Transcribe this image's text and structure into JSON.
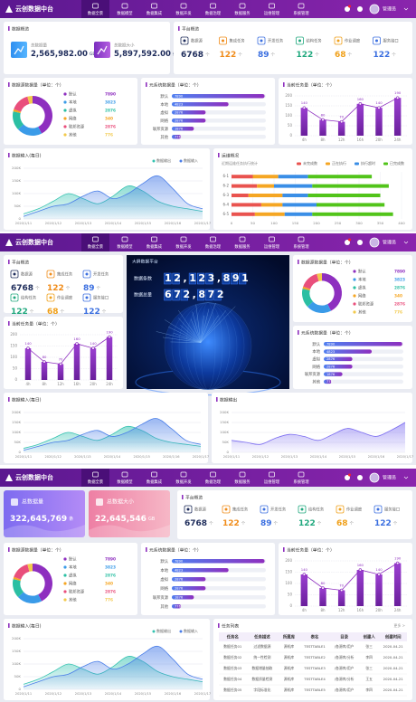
{
  "header": {
    "logo": "云创数据中台",
    "nav": [
      "数据全景",
      "数据模型",
      "数据集成",
      "数据开发",
      "数据治理",
      "数据服务",
      "运维管理",
      "系统管理"
    ],
    "user": "管理员"
  },
  "overview": {
    "title": "数据概览",
    "items": [
      {
        "label": "总数据量",
        "value": "2,565,982.00",
        "unit": "GB"
      },
      {
        "label": "总数据大小",
        "value": "5,897,592.00",
        "unit": "条"
      }
    ]
  },
  "platform": {
    "title": "平台概览",
    "items": [
      {
        "label": "数据源",
        "value": "6768",
        "unit": "个",
        "color": "#1d2b5a"
      },
      {
        "label": "集成任务",
        "value": "122",
        "unit": "个",
        "color": "#f08c1a"
      },
      {
        "label": "开发任务",
        "value": "89",
        "unit": "个",
        "color": "#3b6fe0"
      },
      {
        "label": "结构任务",
        "value": "122",
        "unit": "个",
        "color": "#20a87e"
      },
      {
        "label": "作业调度",
        "value": "68",
        "unit": "个",
        "color": "#f0a01a"
      },
      {
        "label": "服务接口",
        "value": "122",
        "unit": "个",
        "color": "#3b6fe0"
      }
    ]
  },
  "source_chart": {
    "type": "pie",
    "title": "数据源数据量（单位：个）",
    "categories": [
      "默认",
      "本地",
      "虚拟",
      "网络",
      "联邦资源",
      "其他"
    ],
    "values": [
      7890,
      3823,
      2876,
      340,
      2876,
      776
    ],
    "colors": [
      "#8e2fbf",
      "#3a9be8",
      "#2bbfa3",
      "#f5a623",
      "#e94f7c",
      "#f2c94c"
    ]
  },
  "meta_chart": {
    "type": "hbar",
    "title": "元系统数据量（单位：个）",
    "categories": [
      "默认",
      "本地",
      "虚拟",
      "网络",
      "联邦资源",
      "其他"
    ],
    "values": [
      7890,
      4823,
      2876,
      2876,
      1876,
      776
    ],
    "xlim": [
      0,
      8000
    ],
    "color": "#5b6cf0"
  },
  "task_chart": {
    "type": "bar",
    "title": "当前任务量（单位：个）",
    "categories": [
      "4h",
      "8h",
      "12h",
      "16h",
      "20h",
      "24h"
    ],
    "values": [
      140,
      80,
      70,
      160,
      140,
      190
    ],
    "ylim": [
      0,
      200
    ],
    "yticks": [
      0,
      50,
      100,
      150,
      200
    ],
    "color": "#8e2fbf"
  },
  "input_chart": {
    "type": "area",
    "title": "数据输入(每日)",
    "x": [
      "2020/1/11",
      null,
      "2020/1/12",
      null,
      "2020/1/13",
      null,
      "2020/1/14",
      null,
      "2020/1/15",
      null,
      "2020/1/16",
      null,
      "2020/1/17"
    ],
    "series": [
      {
        "name": "数据输出",
        "color": "#33c2b0",
        "values": [
          20000,
          40000,
          70000,
          100000,
          80000,
          60000,
          90000,
          130000,
          110000,
          70000,
          50000,
          40000,
          30000
        ]
      },
      {
        "name": "数据输入",
        "color": "#4a7ee8",
        "values": [
          10000,
          30000,
          50000,
          60000,
          90000,
          110000,
          80000,
          100000,
          140000,
          170000,
          120000,
          60000,
          40000
        ]
      }
    ],
    "ylim": [
      0,
      200000
    ],
    "yticks": [
      0,
      {
        "value": 50000,
        "label": "50K"
      },
      {
        "value": 100000,
        "label": "100K"
      },
      {
        "value": 150000,
        "label": "150K"
      },
      {
        "value": 200000,
        "label": "200K"
      }
    ]
  },
  "ops_chart": {
    "type": "stacked-hbar",
    "title": "运维概况",
    "subtitle": "近期运维任务执行统计",
    "categories": [
      "6-1",
      "6-2",
      "6-3",
      "6-4",
      "6-5"
    ],
    "series": [
      {
        "name": "未完成数",
        "color": "#e9534f",
        "values": [
          50,
          60,
          40,
          70,
          55
        ]
      },
      {
        "name": "正在执行",
        "color": "#f5a623",
        "values": [
          60,
          40,
          80,
          50,
          70
        ]
      },
      {
        "name": "执行超时",
        "color": "#3a8ee6",
        "values": [
          70,
          90,
          60,
          80,
          65
        ]
      },
      {
        "name": "已完成数",
        "color": "#52c41a",
        "values": [
          150,
          180,
          170,
          160,
          190
        ]
      }
    ],
    "xlim": [
      0,
      400
    ],
    "xticks": [
      0,
      50,
      100,
      150,
      200,
      250,
      300,
      350,
      400
    ]
  },
  "big_screen": {
    "title": "大屏数据平台",
    "counters": [
      {
        "label": "数据条数",
        "value": "12,123,891"
      },
      {
        "label": "数据总量",
        "value": "672,872"
      }
    ]
  },
  "output_chart": {
    "type": "area",
    "title": "数据输出",
    "x": [
      "2020/1/11",
      null,
      "2020/1/12",
      null,
      "2020/1/13",
      null,
      "2020/1/14",
      null,
      "2020/1/15",
      null,
      "2020/1/16",
      null,
      "2020/1/17"
    ],
    "series": [
      {
        "name": "数据输出",
        "color": "#7b6cf0",
        "values": [
          60000,
          50000,
          40000,
          70000,
          90000,
          80000,
          60000,
          90000,
          120000,
          100000,
          80000,
          110000,
          150000
        ]
      }
    ],
    "ylim": [
      0,
      200000
    ],
    "yticks": [
      0,
      {
        "value": 50000,
        "label": "50K"
      },
      {
        "value": 100000,
        "label": "100K"
      },
      {
        "value": 150000,
        "label": "150K"
      },
      {
        "value": 200000,
        "label": "200K"
      }
    ]
  },
  "total_cards": [
    {
      "label": "总数据量",
      "value": "322,645,769",
      "unit": "条"
    },
    {
      "label": "总数据大小",
      "value": "22,645,546",
      "unit": "GB"
    }
  ],
  "task_table": {
    "title": "任务列表",
    "more": "更多 >",
    "columns": [
      "任务名",
      "任务描述",
      "所属库",
      "表名",
      "目录",
      "创建人",
      "创建时间"
    ],
    "rows": [
      [
        "数据任务01",
        "过滤数据源",
        "源机库",
        "TESTTABLE1",
        "/各源库/用户",
        "张三",
        "2020-04-21"
      ],
      [
        "数据任务02",
        "统一性检测",
        "源机库",
        "TESTTABLE2",
        "/各源库/分析",
        "李四",
        "2020-04-21"
      ],
      [
        "数据任务03",
        "数据增量抽取",
        "源机库",
        "TESTTABLE3",
        "/各源库/用户",
        "张三",
        "2020-04-21"
      ],
      [
        "数据任务04",
        "数据质量检测",
        "源机库",
        "TESTTABLE4",
        "/各源库/分析",
        "王五",
        "2020-04-21"
      ],
      [
        "数据任务05",
        "字段标准化",
        "源机库",
        "TESTTABLE5",
        "/各源库/用户",
        "李四",
        "2020-04-21"
      ]
    ]
  }
}
